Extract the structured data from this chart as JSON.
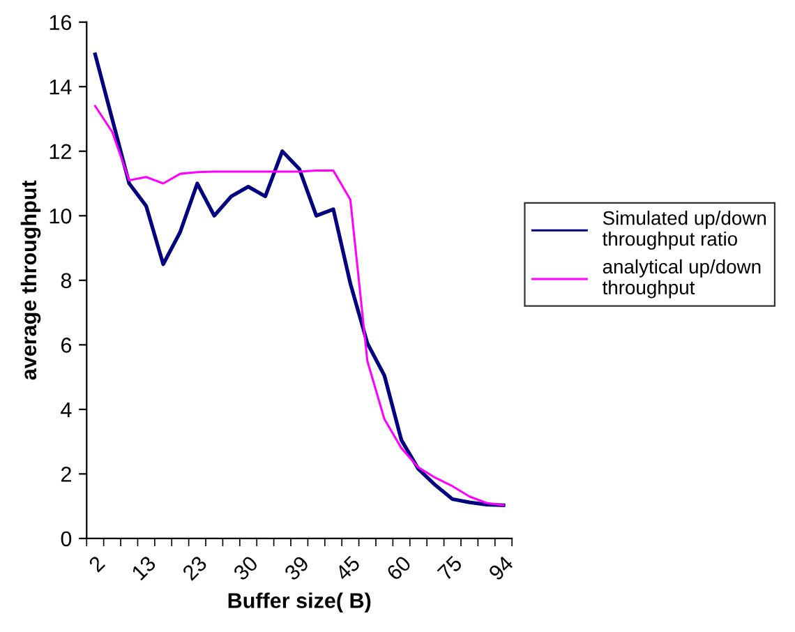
{
  "chart_data": {
    "type": "line",
    "xlabel": "Buffer size( B)",
    "ylabel": "average throughput",
    "categories": [
      "2",
      null,
      null,
      "13",
      null,
      null,
      "23",
      null,
      null,
      "30",
      null,
      null,
      "39",
      null,
      null,
      "45",
      null,
      null,
      "60",
      null,
      null,
      "75",
      null,
      null,
      "94"
    ],
    "series": [
      {
        "name": "Simulated up/down\nthroughput ratio",
        "color": "#000080",
        "values": [
          15,
          13,
          11,
          10.3,
          8.5,
          9.5,
          11,
          10,
          10.6,
          10.9,
          10.6,
          12,
          11.45,
          10,
          10.2,
          7.9,
          6.05,
          5.05,
          3.05,
          2.15,
          1.65,
          1.22,
          1.12,
          1.05,
          1.03
        ]
      },
      {
        "name": "analytical up/down\nthroughput",
        "color": "#ff00ff",
        "values": [
          13.4,
          12.6,
          11.1,
          11.2,
          11,
          11.3,
          11.35,
          11.37,
          11.37,
          11.37,
          11.37,
          11.37,
          11.37,
          11.4,
          11.4,
          10.5,
          5.5,
          3.7,
          2.8,
          2.2,
          1.88,
          1.62,
          1.3,
          1.1,
          1.03
        ]
      }
    ],
    "ylim": [
      0,
      16
    ],
    "yticks": [
      0,
      2,
      4,
      6,
      8,
      10,
      12,
      14,
      16
    ],
    "grid": false,
    "legend": "right",
    "marker": "none",
    "line_style": "solid"
  }
}
